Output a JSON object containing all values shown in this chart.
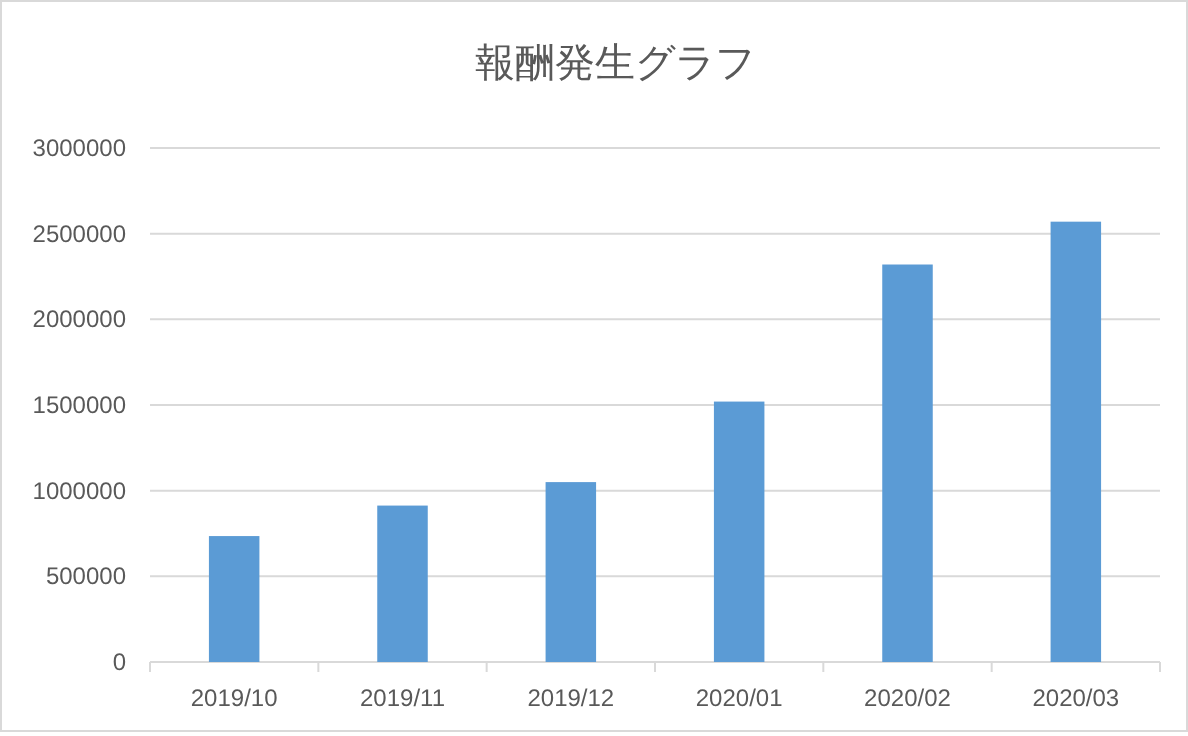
{
  "chart_data": {
    "type": "bar",
    "title": "報酬発生グラフ",
    "categories": [
      "2019/10",
      "2019/11",
      "2019/12",
      "2020/01",
      "2020/02",
      "2020/03"
    ],
    "values": [
      735000,
      913000,
      1050000,
      1520000,
      2320000,
      2570000
    ],
    "color": "#5b9bd5",
    "ylim": [
      0,
      3000000
    ],
    "yticks": [
      0,
      500000,
      1000000,
      1500000,
      2000000,
      2500000,
      3000000
    ],
    "grid": "y"
  }
}
